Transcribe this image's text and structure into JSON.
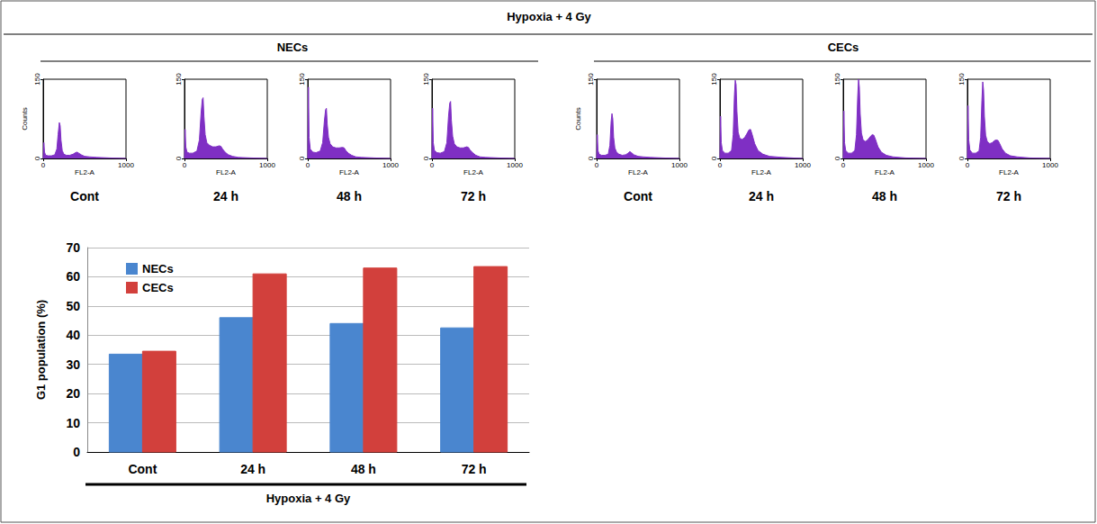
{
  "title": "Hypoxia + 4 Gy",
  "groups": [
    "NECs",
    "CECs"
  ],
  "chart_data": [
    {
      "type": "area",
      "group": "NECs",
      "title": "Cont",
      "xlabel": "FL2-A",
      "ylabel": "Counts",
      "color": "#7f2fc4",
      "xlim": [
        0,
        1000
      ],
      "xticks": [
        0,
        1000
      ],
      "ylim": [
        0,
        150
      ],
      "yticks": [
        0,
        150
      ],
      "x": [
        0,
        8,
        16,
        30,
        60,
        100,
        140,
        165,
        180,
        195,
        205,
        215,
        230,
        250,
        280,
        320,
        360,
        390,
        410,
        430,
        460,
        500,
        560,
        650,
        800,
        1000
      ],
      "values": [
        0,
        30,
        12,
        6,
        5,
        5,
        7,
        18,
        45,
        68,
        62,
        35,
        15,
        8,
        6,
        6,
        8,
        11,
        12,
        10,
        7,
        4,
        3,
        2,
        1,
        0
      ]
    },
    {
      "type": "area",
      "group": "NECs",
      "title": "24 h",
      "xlabel": "FL2-A",
      "color": "#7f2fc4",
      "xlim": [
        0,
        1000
      ],
      "xticks": [
        0,
        1000
      ],
      "ylim": [
        0,
        150
      ],
      "yticks": [
        0,
        150
      ],
      "x": [
        0,
        8,
        16,
        30,
        60,
        100,
        150,
        180,
        200,
        215,
        225,
        235,
        250,
        270,
        300,
        340,
        380,
        420,
        440,
        460,
        490,
        530,
        580,
        650,
        800,
        1000
      ],
      "values": [
        0,
        55,
        22,
        12,
        10,
        10,
        14,
        35,
        85,
        112,
        115,
        80,
        45,
        30,
        25,
        22,
        22,
        24,
        23,
        18,
        12,
        7,
        4,
        2,
        1,
        0
      ]
    },
    {
      "type": "area",
      "group": "NECs",
      "title": "48 h",
      "xlabel": "FL2-A",
      "color": "#7f2fc4",
      "xlim": [
        0,
        1000
      ],
      "xticks": [
        0,
        1000
      ],
      "ylim": [
        0,
        150
      ],
      "yticks": [
        0,
        150
      ],
      "x": [
        0,
        8,
        16,
        30,
        60,
        100,
        150,
        180,
        200,
        215,
        225,
        235,
        250,
        270,
        300,
        340,
        380,
        420,
        440,
        460,
        490,
        530,
        580,
        650,
        800,
        1000
      ],
      "values": [
        0,
        135,
        40,
        18,
        12,
        11,
        14,
        30,
        70,
        92,
        95,
        65,
        40,
        28,
        22,
        20,
        20,
        21,
        20,
        15,
        10,
        6,
        3,
        2,
        1,
        0
      ]
    },
    {
      "type": "area",
      "group": "NECs",
      "title": "72 h",
      "xlabel": "FL2-A",
      "color": "#7f2fc4",
      "xlim": [
        0,
        1000
      ],
      "xticks": [
        0,
        1000
      ],
      "ylim": [
        0,
        150
      ],
      "yticks": [
        0,
        150
      ],
      "x": [
        0,
        8,
        16,
        30,
        60,
        100,
        150,
        180,
        200,
        215,
        225,
        235,
        250,
        270,
        300,
        340,
        380,
        420,
        440,
        460,
        490,
        530,
        580,
        650,
        800,
        1000
      ],
      "values": [
        0,
        95,
        30,
        15,
        11,
        10,
        13,
        30,
        80,
        105,
        108,
        72,
        42,
        28,
        22,
        20,
        20,
        22,
        21,
        16,
        11,
        6,
        3,
        2,
        1,
        0
      ]
    },
    {
      "type": "area",
      "group": "CECs",
      "title": "Cont",
      "xlabel": "FL2-A",
      "ylabel": "Counts",
      "color": "#7f2fc4",
      "xlim": [
        0,
        1000
      ],
      "xticks": [
        0,
        1000
      ],
      "ylim": [
        0,
        150
      ],
      "yticks": [
        0,
        150
      ],
      "x": [
        0,
        8,
        16,
        30,
        60,
        100,
        140,
        160,
        175,
        185,
        195,
        205,
        220,
        240,
        270,
        310,
        350,
        380,
        400,
        420,
        450,
        500,
        560,
        650,
        800,
        1000
      ],
      "values": [
        0,
        45,
        15,
        8,
        6,
        6,
        8,
        25,
        70,
        85,
        75,
        40,
        20,
        12,
        8,
        6,
        7,
        10,
        13,
        11,
        7,
        4,
        3,
        2,
        1,
        0
      ]
    },
    {
      "type": "area",
      "group": "CECs",
      "title": "24 h",
      "xlabel": "FL2-A",
      "color": "#7f2fc4",
      "xlim": [
        0,
        1000
      ],
      "xticks": [
        0,
        1000
      ],
      "ylim": [
        0,
        150
      ],
      "yticks": [
        0,
        150
      ],
      "x": [
        0,
        8,
        16,
        30,
        60,
        100,
        140,
        160,
        175,
        185,
        195,
        205,
        220,
        240,
        270,
        300,
        330,
        350,
        370,
        390,
        420,
        460,
        520,
        600,
        750,
        1000
      ],
      "values": [
        0,
        80,
        30,
        15,
        10,
        10,
        15,
        45,
        120,
        148,
        140,
        90,
        50,
        38,
        36,
        40,
        48,
        54,
        55,
        45,
        28,
        15,
        8,
        4,
        2,
        0
      ]
    },
    {
      "type": "area",
      "group": "CECs",
      "title": "48 h",
      "xlabel": "FL2-A",
      "color": "#7f2fc4",
      "xlim": [
        0,
        1000
      ],
      "xticks": [
        0,
        1000
      ],
      "ylim": [
        0,
        150
      ],
      "yticks": [
        0,
        150
      ],
      "x": [
        0,
        8,
        16,
        30,
        60,
        100,
        140,
        160,
        175,
        185,
        195,
        205,
        220,
        240,
        270,
        300,
        330,
        350,
        370,
        390,
        420,
        460,
        520,
        600,
        750,
        1000
      ],
      "values": [
        0,
        90,
        30,
        15,
        10,
        10,
        15,
        45,
        118,
        150,
        135,
        85,
        48,
        35,
        32,
        36,
        42,
        45,
        44,
        36,
        22,
        12,
        6,
        3,
        1,
        0
      ]
    },
    {
      "type": "area",
      "group": "CECs",
      "title": "72 h",
      "xlabel": "FL2-A",
      "color": "#7f2fc4",
      "xlim": [
        0,
        1000
      ],
      "xticks": [
        0,
        1000
      ],
      "ylim": [
        0,
        150
      ],
      "yticks": [
        0,
        150
      ],
      "x": [
        0,
        8,
        16,
        30,
        60,
        100,
        140,
        160,
        175,
        185,
        195,
        205,
        220,
        240,
        270,
        300,
        330,
        350,
        370,
        390,
        420,
        460,
        520,
        600,
        750,
        1000
      ],
      "values": [
        0,
        100,
        35,
        16,
        10,
        10,
        14,
        40,
        110,
        145,
        130,
        80,
        44,
        32,
        28,
        30,
        34,
        35,
        34,
        28,
        18,
        10,
        5,
        3,
        1,
        0
      ]
    },
    {
      "type": "bar",
      "xlabel": "Hypoxia + 4 Gy",
      "ylabel": "G1 population (%)",
      "categories": [
        "Cont",
        "24 h",
        "48 h",
        "72 h"
      ],
      "series": [
        {
          "name": "NECs",
          "color": "#4a86cf",
          "values": [
            33.5,
            46,
            44,
            42.5
          ]
        },
        {
          "name": "CECs",
          "color": "#d2403c",
          "values": [
            34.5,
            61,
            63,
            63.5
          ]
        }
      ],
      "ylim": [
        0,
        70
      ],
      "yticks": [
        0,
        10,
        20,
        30,
        40,
        50,
        60,
        70
      ],
      "grid": true,
      "legend": "upper left"
    }
  ]
}
